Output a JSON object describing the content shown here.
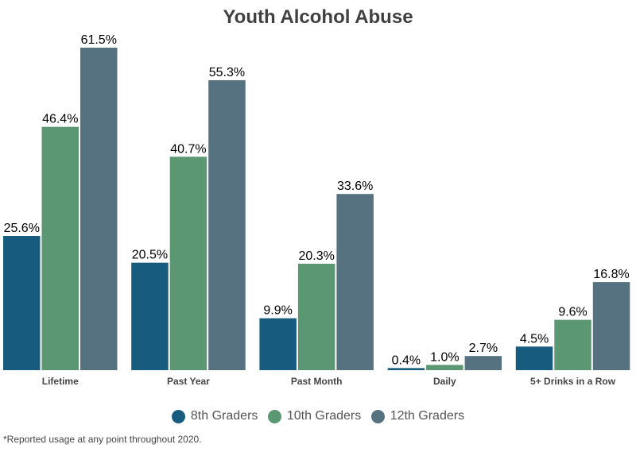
{
  "chart_data": {
    "type": "bar",
    "title": "Youth Alcohol Abuse",
    "categories": [
      "Lifetime",
      "Past Year",
      "Past Month",
      "Daily",
      "5+ Drinks in a Row"
    ],
    "series": [
      {
        "name": "8th Graders",
        "color": "#175b7f",
        "values": [
          25.6,
          20.5,
          9.9,
          0.4,
          4.5
        ]
      },
      {
        "name": "10th Graders",
        "color": "#5a9772",
        "values": [
          46.4,
          40.7,
          20.3,
          1.0,
          9.6
        ]
      },
      {
        "name": "12th Graders",
        "color": "#56717f",
        "values": [
          61.5,
          55.3,
          33.6,
          2.7,
          16.8
        ]
      }
    ],
    "value_suffix": "%",
    "xlabel": "",
    "ylabel": "",
    "ylim": [
      0,
      61.5
    ],
    "grid": false,
    "legend_position": "bottom"
  },
  "footnote": "*Reported usage at any point throughout 2020."
}
